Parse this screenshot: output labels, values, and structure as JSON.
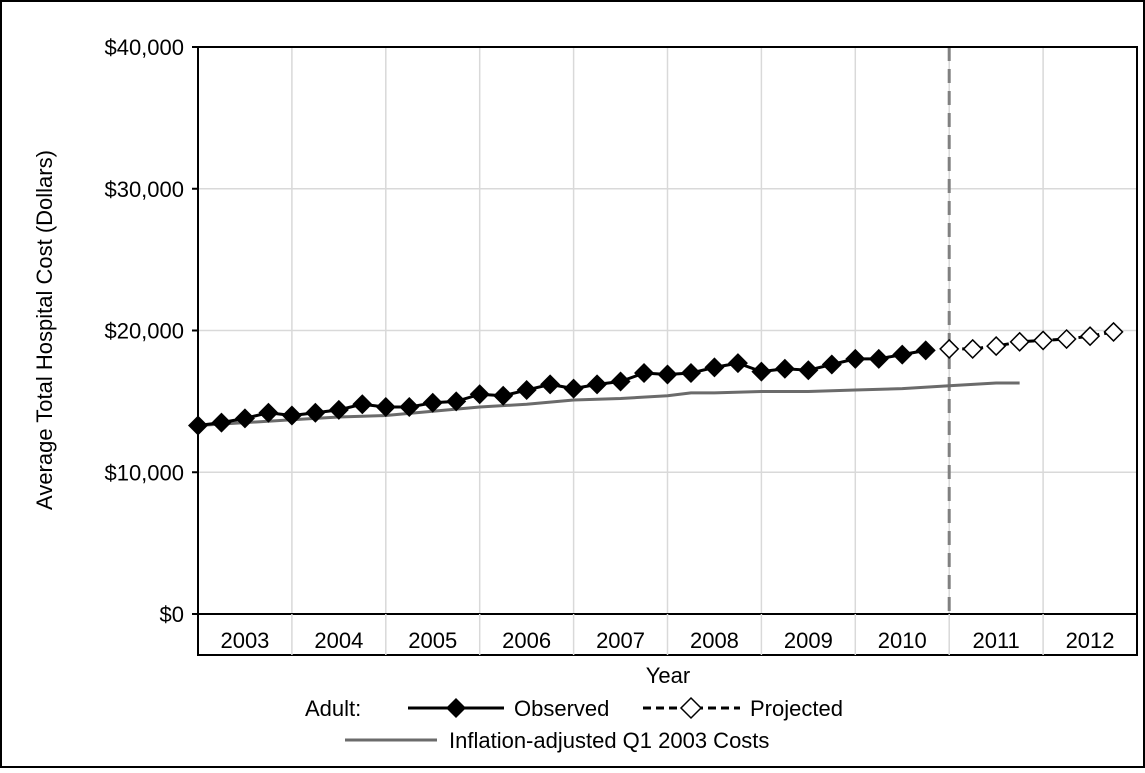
{
  "chart_data": {
    "type": "line",
    "title": "",
    "xlabel": "Year",
    "ylabel": "Average Total Hospital Cost (Dollars)",
    "ylim": [
      0,
      40000
    ],
    "yticks": [
      0,
      10000,
      20000,
      30000,
      40000
    ],
    "ytick_labels": [
      "$0",
      "$10,000",
      "$20,000",
      "$30,000",
      "$40,000"
    ],
    "categories": [
      "2003",
      "2004",
      "2005",
      "2006",
      "2007",
      "2008",
      "2009",
      "2010",
      "2011",
      "2012"
    ],
    "grid": "on",
    "projection_divider_after": "2010",
    "legend": {
      "placement": "bottom",
      "group_label": "Adult:",
      "entries": [
        "Observed",
        "Projected",
        "Inflation-adjusted Q1 2003 Costs"
      ]
    },
    "series": [
      {
        "name": "Observed",
        "marker": "filled-diamond",
        "line": "solid",
        "color": "#000000",
        "x": [
          2003.0,
          2003.25,
          2003.5,
          2003.75,
          2004.0,
          2004.25,
          2004.5,
          2004.75,
          2005.0,
          2005.25,
          2005.5,
          2005.75,
          2006.0,
          2006.25,
          2006.5,
          2006.75,
          2007.0,
          2007.25,
          2007.5,
          2007.75,
          2008.0,
          2008.25,
          2008.5,
          2008.75,
          2009.0,
          2009.25,
          2009.5,
          2009.75,
          2010.0,
          2010.25,
          2010.5,
          2010.75
        ],
        "values": [
          13300,
          13500,
          13800,
          14200,
          14000,
          14200,
          14400,
          14800,
          14600,
          14600,
          14900,
          15000,
          15500,
          15400,
          15800,
          16200,
          15900,
          16200,
          16400,
          17000,
          16900,
          17000,
          17400,
          17700,
          17100,
          17300,
          17200,
          17600,
          18000,
          18000,
          18300,
          18600
        ]
      },
      {
        "name": "Projected",
        "marker": "open-diamond",
        "line": "dashed",
        "color": "#000000",
        "x": [
          2011.0,
          2011.25,
          2011.5,
          2011.75,
          2012.0,
          2012.25,
          2012.5,
          2012.75
        ],
        "values": [
          18700,
          18700,
          18900,
          19200,
          19300,
          19400,
          19600,
          19900
        ]
      },
      {
        "name": "Inflation-adjusted Q1 2003 Costs",
        "marker": "none",
        "line": "solid",
        "color": "#6b6b6b",
        "x": [
          2003.0,
          2003.5,
          2004.0,
          2004.5,
          2005.0,
          2005.5,
          2006.0,
          2006.5,
          2007.0,
          2007.5,
          2008.0,
          2008.25,
          2008.5,
          2009.0,
          2009.5,
          2010.0,
          2010.5,
          2011.0,
          2011.5,
          2011.75
        ],
        "values": [
          13300,
          13500,
          13700,
          13900,
          14000,
          14300,
          14600,
          14800,
          15100,
          15200,
          15400,
          15600,
          15600,
          15700,
          15700,
          15800,
          15900,
          16100,
          16300,
          16300
        ]
      }
    ]
  }
}
